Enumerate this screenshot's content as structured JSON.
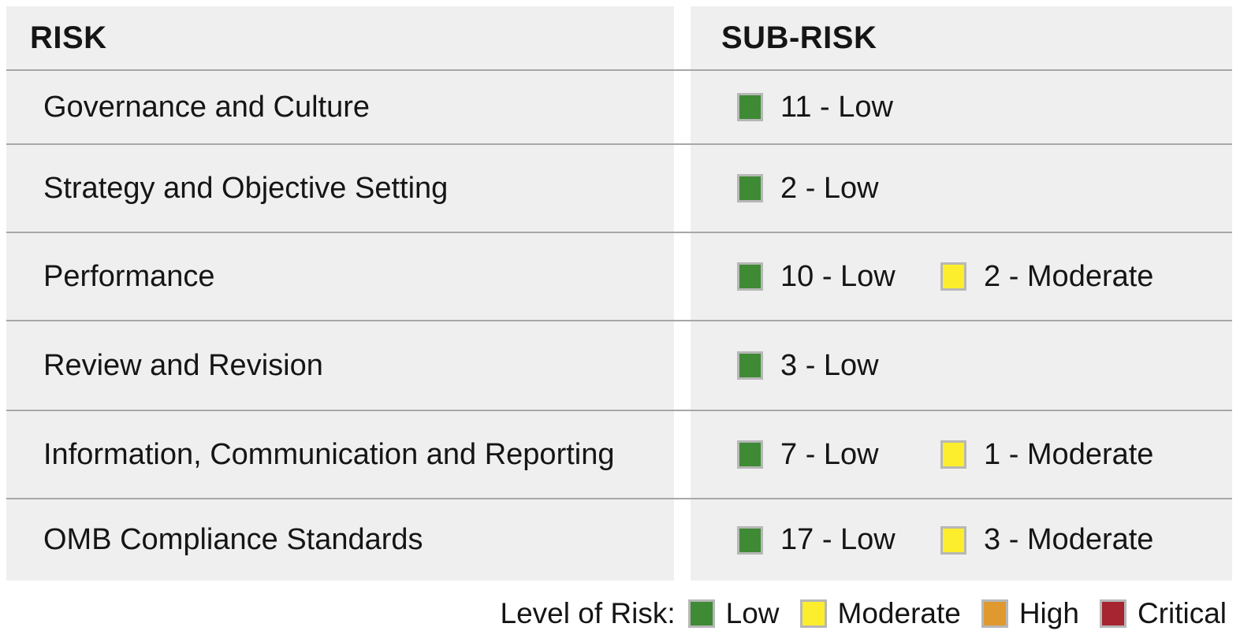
{
  "chart_data": {
    "type": "table",
    "columns": [
      "RISK",
      "SUB-RISK"
    ],
    "rows": [
      {
        "risk": "Governance and Culture",
        "sub_risks": [
          {
            "count": 11,
            "level": "Low",
            "label": "11 - Low"
          }
        ]
      },
      {
        "risk": "Strategy and Objective Setting",
        "sub_risks": [
          {
            "count": 2,
            "level": "Low",
            "label": "2 - Low"
          }
        ]
      },
      {
        "risk": "Performance",
        "sub_risks": [
          {
            "count": 10,
            "level": "Low",
            "label": "10 - Low"
          },
          {
            "count": 2,
            "level": "Moderate",
            "label": "2 - Moderate"
          }
        ]
      },
      {
        "risk": "Review and Revision",
        "sub_risks": [
          {
            "count": 3,
            "level": "Low",
            "label": "3 - Low"
          }
        ]
      },
      {
        "risk": "Information, Communication and Reporting",
        "sub_risks": [
          {
            "count": 7,
            "level": "Low",
            "label": "7 - Low"
          },
          {
            "count": 1,
            "level": "Moderate",
            "label": "1 - Moderate"
          }
        ]
      },
      {
        "risk": "OMB Compliance Standards",
        "sub_risks": [
          {
            "count": 17,
            "level": "Low",
            "label": "17 - Low"
          },
          {
            "count": 3,
            "level": "Moderate",
            "label": "3 - Moderate"
          }
        ]
      }
    ],
    "legend": {
      "title": "Level of Risk:",
      "levels": [
        {
          "label": "Low",
          "color": "#3F8A35"
        },
        {
          "label": "Moderate",
          "color": "#FCEE2D"
        },
        {
          "label": "High",
          "color": "#E0992F"
        },
        {
          "label": "Critical",
          "color": "#A62531"
        }
      ]
    }
  },
  "header": {
    "risk": "RISK",
    "sub_risk": "SUB-RISK"
  },
  "colors": {
    "low": "#3F8A35",
    "moderate": "#FCEE2D",
    "high": "#E0992F",
    "critical": "#A62531",
    "panel_bg": "#F0EFF0",
    "divider": "#A7A7A7",
    "swatch_border": "#B7B7B7"
  }
}
